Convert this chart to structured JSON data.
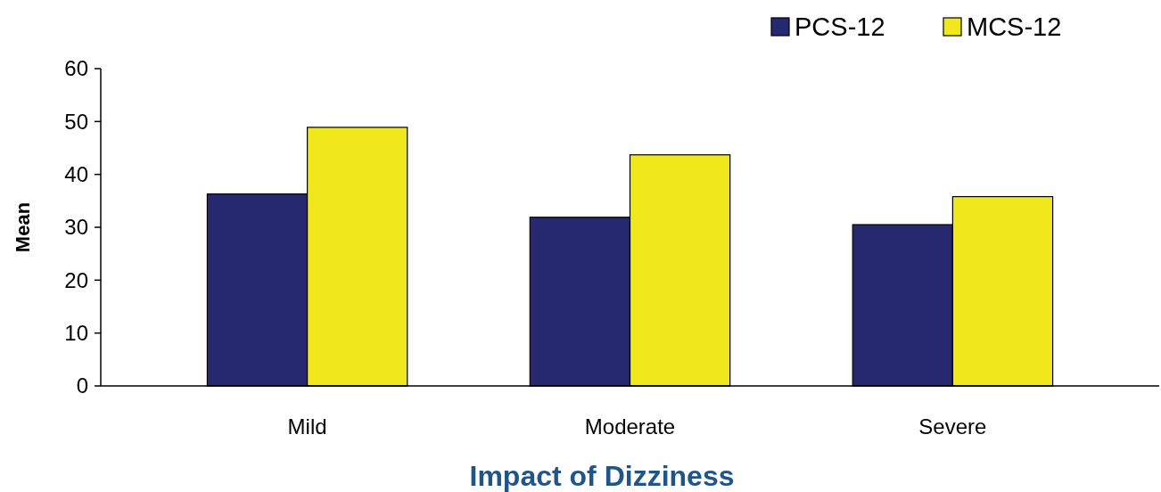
{
  "chart_data": {
    "type": "bar",
    "xlabel": "Impact of Dizziness",
    "ylabel": "Mean",
    "categories": [
      "Mild",
      "Moderate",
      "Severe"
    ],
    "series": [
      {
        "name": "PCS-12",
        "color": "#262870",
        "values": [
          36.3,
          31.9,
          30.5
        ]
      },
      {
        "name": "MCS-12",
        "color": "#f0e81a",
        "values": [
          48.9,
          43.7,
          35.8
        ]
      }
    ],
    "ylim": [
      0,
      60
    ],
    "yticks": [
      0,
      10,
      20,
      30,
      40,
      50,
      60
    ],
    "grid": false,
    "legend": "top right"
  }
}
